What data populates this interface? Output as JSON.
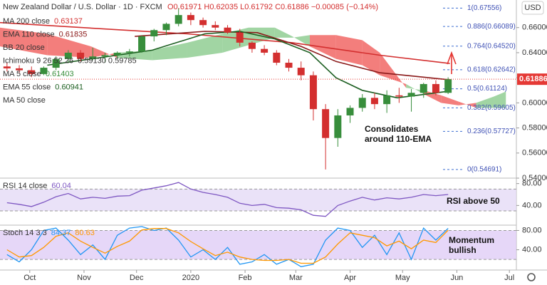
{
  "header": {
    "title": "New Zealand Dollar / U.S. Dollar · 1D · FXCM",
    "ohlc": "O0.61971 H0.62035 L0.61792 C0.61886 −0.00085 (−0.14%)",
    "currency": "USD",
    "indicators": [
      {
        "name": "MA 200 close",
        "reading": "0.63137",
        "color": "#d32f2f"
      },
      {
        "name": "EMA 110 close",
        "reading": "0.61835",
        "color": "#8b1a1a"
      },
      {
        "name": "BB 20 close",
        "reading": null,
        "color": "#333"
      },
      {
        "name": "Ichimoku 9 26 52 26",
        "reading": "0.59130  0.59785",
        "color": "#333"
      },
      {
        "name": "MA 5 close",
        "reading": "0.61403",
        "color": "#388e3c"
      },
      {
        "name": "EMA 55 close",
        "reading": "0.60941",
        "color": "#1b5e20"
      },
      {
        "name": "MA 50 close",
        "reading": null,
        "color": "#333"
      }
    ]
  },
  "chart_data": [
    {
      "type": "candlestick",
      "current_price": {
        "value": 0.61886,
        "label": "0.61886",
        "color": "#e53935"
      },
      "x": [
        -13,
        -6,
        1,
        8,
        15,
        22,
        29,
        36,
        43,
        50,
        57,
        64,
        71,
        78,
        85,
        92,
        99,
        106,
        113,
        120,
        127,
        134,
        141,
        148,
        155,
        162,
        169,
        176,
        183,
        190,
        197,
        204,
        211,
        218,
        225,
        232,
        239
      ],
      "open": [
        0.629,
        0.6275,
        0.626,
        0.623,
        0.628,
        0.635,
        0.64,
        0.635,
        0.637,
        0.638,
        0.64,
        0.641,
        0.653,
        0.658,
        0.663,
        0.67,
        0.666,
        0.662,
        0.66,
        0.656,
        0.648,
        0.643,
        0.64,
        0.632,
        0.628,
        0.622,
        0.595,
        0.572,
        0.59,
        0.596,
        0.604,
        0.599,
        0.606,
        0.605,
        0.608,
        0.615,
        0.608
      ],
      "high": [
        0.632,
        0.63,
        0.629,
        0.629,
        0.637,
        0.642,
        0.642,
        0.644,
        0.64,
        0.641,
        0.643,
        0.654,
        0.659,
        0.664,
        0.67556,
        0.672,
        0.668,
        0.665,
        0.662,
        0.659,
        0.649,
        0.646,
        0.642,
        0.635,
        0.633,
        0.625,
        0.599,
        0.595,
        0.598,
        0.607,
        0.608,
        0.61,
        0.612,
        0.611,
        0.616,
        0.618,
        0.62035
      ],
      "low": [
        0.625,
        0.624,
        0.6205,
        0.622,
        0.626,
        0.633,
        0.633,
        0.634,
        0.632,
        0.635,
        0.637,
        0.64,
        0.649,
        0.654,
        0.661,
        0.662,
        0.66,
        0.658,
        0.655,
        0.645,
        0.64,
        0.638,
        0.63,
        0.625,
        0.618,
        0.586,
        0.54691,
        0.565,
        0.584,
        0.593,
        0.595,
        0.592,
        0.6,
        0.593,
        0.604,
        0.606,
        0.607
      ],
      "close": [
        0.6275,
        0.626,
        0.623,
        0.628,
        0.635,
        0.64,
        0.635,
        0.637,
        0.638,
        0.64,
        0.641,
        0.653,
        0.658,
        0.663,
        0.67,
        0.666,
        0.662,
        0.66,
        0.656,
        0.648,
        0.643,
        0.64,
        0.632,
        0.628,
        0.622,
        0.595,
        0.572,
        0.59,
        0.596,
        0.604,
        0.599,
        0.606,
        0.605,
        0.608,
        0.615,
        0.608,
        0.61886
      ],
      "up_color": "#388e3c",
      "down_color": "#d32f2f",
      "lines": [
        {
          "name": "MA 200 close",
          "color": "#d32f2f",
          "x": [
            -17,
            30,
            90,
            150,
            200,
            240
          ],
          "values": [
            0.664,
            0.66,
            0.655,
            0.648,
            0.638,
            0.63137
          ]
        },
        {
          "name": "EMA 110 close",
          "color": "#8b1a1a",
          "x": [
            60,
            100,
            130,
            155,
            175,
            200,
            240
          ],
          "values": [
            0.653,
            0.657,
            0.656,
            0.645,
            0.633,
            0.624,
            0.61835
          ]
        },
        {
          "name": "EMA 55 close",
          "color": "#1b5e20",
          "x": [
            10,
            40,
            70,
            100,
            120,
            140,
            160,
            175,
            190,
            210,
            240
          ],
          "values": [
            0.63,
            0.636,
            0.642,
            0.655,
            0.657,
            0.651,
            0.64,
            0.62,
            0.61,
            0.604,
            0.60941
          ]
        }
      ],
      "cloud": {
        "x": [
          -17,
          10,
          35,
          50,
          70,
          90,
          110,
          125,
          140,
          150,
          160,
          175,
          190,
          200,
          215,
          225,
          235,
          245,
          255,
          265,
          272
        ],
        "span_a": [
          0.645,
          0.638,
          0.636,
          0.64,
          0.642,
          0.648,
          0.655,
          0.66,
          0.66,
          0.653,
          0.645,
          0.635,
          0.63,
          0.622,
          0.615,
          0.607,
          0.6,
          0.598,
          0.6,
          0.605,
          0.609
        ],
        "span_b": [
          0.66,
          0.655,
          0.645,
          0.636,
          0.634,
          0.636,
          0.64,
          0.646,
          0.652,
          0.652,
          0.654,
          0.654,
          0.65,
          0.64,
          0.612,
          0.61,
          0.606,
          0.601,
          0.596,
          0.596,
          0.596
        ],
        "bull_color": "#81c784",
        "bear_color": "#ef5350"
      },
      "fib": [
        {
          "label": "1(0.67556)",
          "value": 0.67556
        },
        {
          "label": "0.886(0.66089)",
          "value": 0.66089
        },
        {
          "label": "0.764(0.64520)",
          "value": 0.6452
        },
        {
          "label": "0.618(0.62642)",
          "value": 0.62642
        },
        {
          "label": "0.5(0.61124)",
          "value": 0.61124
        },
        {
          "label": "0.382(0.59605)",
          "value": 0.59605
        },
        {
          "label": "0.236(0.57727)",
          "value": 0.57727
        },
        {
          "label": "0(0.54691)",
          "value": 0.54691
        }
      ],
      "annotation": [
        "Consolidates",
        "around 110-EMA"
      ],
      "ylim": [
        0.54,
        0.682
      ],
      "yticks": [
        {
          "value": 0.54,
          "label": "0.54000"
        },
        {
          "value": 0.56,
          "label": "0.56000"
        },
        {
          "value": 0.58,
          "label": "0.58000"
        },
        {
          "value": 0.6,
          "label": "0.60000"
        },
        {
          "value": 0.62,
          "label": "0.62000"
        },
        {
          "value": 0.64,
          "label": "0.64000"
        },
        {
          "value": 0.66,
          "label": "0.66000"
        }
      ],
      "xlim": [
        -17,
        278
      ],
      "xticks": [
        {
          "value": 0,
          "label": "Oct"
        },
        {
          "value": 31,
          "label": "Nov"
        },
        {
          "value": 61,
          "label": "Dec"
        },
        {
          "value": 92,
          "label": "2020"
        },
        {
          "value": 123,
          "label": "Feb"
        },
        {
          "value": 152,
          "label": "Mar"
        },
        {
          "value": 183,
          "label": "Apr"
        },
        {
          "value": 213,
          "label": "May"
        },
        {
          "value": 244,
          "label": "Jun"
        },
        {
          "value": 274,
          "label": "Jul"
        }
      ]
    },
    {
      "type": "line",
      "title": "RSI 14 close",
      "annotation": "RSI above 50",
      "band": [
        30,
        70
      ],
      "band_color": "#e1d5f5",
      "ylim": [
        4,
        90
      ],
      "yticks": [
        {
          "value": 40,
          "label": "40.00"
        },
        {
          "value": 80,
          "label": "80.00"
        }
      ],
      "series": [
        {
          "name": "60.04",
          "color": "#7e57c2",
          "values": [
            45,
            42,
            38,
            46,
            56,
            62,
            52,
            55,
            53,
            57,
            58,
            68,
            72,
            76,
            82,
            70,
            64,
            60,
            55,
            44,
            40,
            42,
            36,
            35,
            32,
            22,
            20,
            40,
            48,
            55,
            50,
            54,
            52,
            55,
            60,
            58,
            60.04
          ]
        }
      ]
    },
    {
      "type": "line",
      "title": "Stoch 14 3 3",
      "annotation": [
        "Momentum",
        "bullish"
      ],
      "band": [
        20,
        80
      ],
      "band_color": "#dcc6f5",
      "ylim": [
        -2,
        91
      ],
      "yticks": [
        {
          "value": 40,
          "label": "40.00"
        },
        {
          "value": 80,
          "label": "80.00"
        }
      ],
      "series": [
        {
          "name": "84.37",
          "color": "#2196f3",
          "values": [
            30,
            15,
            40,
            80,
            85,
            60,
            30,
            50,
            20,
            70,
            85,
            88,
            80,
            85,
            60,
            25,
            40,
            20,
            45,
            10,
            15,
            30,
            10,
            20,
            5,
            10,
            60,
            85,
            80,
            45,
            70,
            30,
            75,
            20,
            85,
            60,
            84.37
          ]
        },
        {
          "name": "80.63",
          "color": "#ff9800",
          "values": [
            40,
            25,
            28,
            45,
            68,
            75,
            58,
            45,
            33,
            47,
            58,
            81,
            84,
            84,
            75,
            57,
            42,
            28,
            35,
            25,
            20,
            18,
            18,
            20,
            12,
            12,
            25,
            52,
            75,
            70,
            65,
            48,
            58,
            42,
            60,
            55,
            80.63
          ]
        }
      ]
    }
  ]
}
